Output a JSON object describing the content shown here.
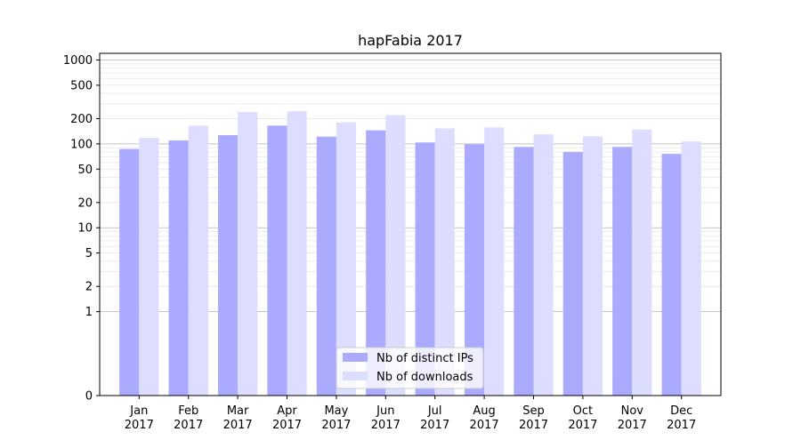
{
  "chart_data": {
    "type": "bar",
    "title": "hapFabia 2017",
    "xlabel": "",
    "ylabel": "",
    "y_scale": "symlog",
    "ylim": [
      0,
      1200
    ],
    "y_ticks": [
      "0",
      "1",
      "2",
      "5",
      "10",
      "20",
      "50",
      "100",
      "200",
      "500",
      "1000"
    ],
    "y_tick_values": [
      0,
      1,
      2,
      5,
      10,
      20,
      50,
      100,
      200,
      500,
      1000
    ],
    "grid": "horizontal",
    "legend_position": "bottom-center",
    "categories": [
      "Jan\n2017",
      "Feb\n2017",
      "Mar\n2017",
      "Apr\n2017",
      "May\n2017",
      "Jun\n2017",
      "Jul\n2017",
      "Aug\n2017",
      "Sep\n2017",
      "Oct\n2017",
      "Nov\n2017",
      "Dec\n2017"
    ],
    "series": [
      {
        "name": "Nb of distinct IPs",
        "color": "#aaaaff",
        "values": [
          87,
          110,
          127,
          165,
          122,
          145,
          104,
          99,
          92,
          80,
          92,
          76
        ]
      },
      {
        "name": "Nb of downloads",
        "color": "#ddddff",
        "values": [
          118,
          165,
          240,
          245,
          180,
          220,
          153,
          157,
          130,
          123,
          148,
          107
        ]
      }
    ]
  }
}
